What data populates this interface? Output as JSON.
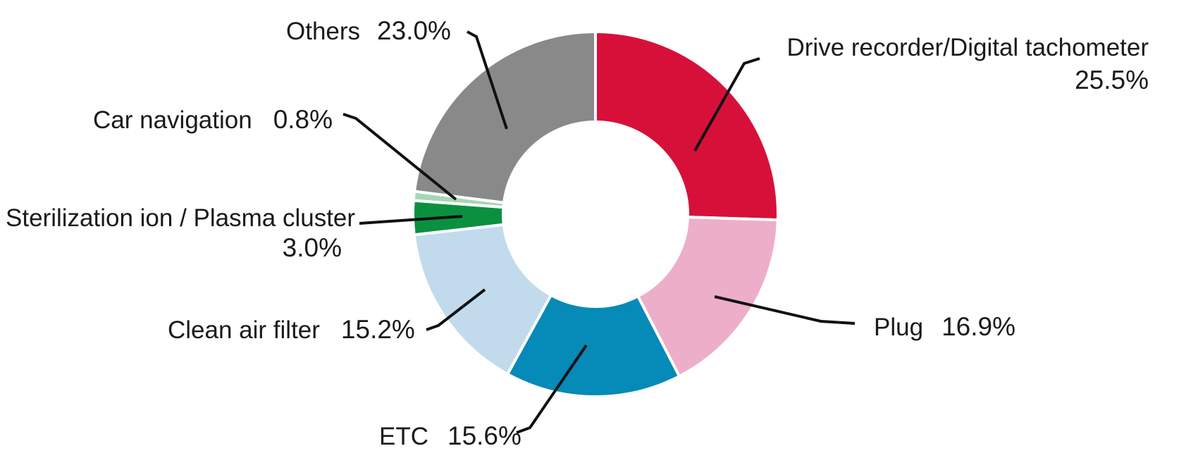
{
  "chart_data": {
    "type": "pie",
    "subtype": "donut",
    "title": "",
    "direction": "clockwise",
    "start_angle_deg": 0,
    "inner_radius_ratio": 0.506,
    "background": "#ffffff",
    "leader_line_color": "#111111",
    "text_color": "#1a1a1a",
    "segments": [
      {
        "id": "drive",
        "label": "Drive recorder/Digital tachometer",
        "value": 25.5,
        "pct_label": "25.5%",
        "color": "#d7103a"
      },
      {
        "id": "plug",
        "label": "Plug",
        "value": 16.9,
        "pct_label": "16.9%",
        "color": "#edaec9"
      },
      {
        "id": "etc",
        "label": "ETC",
        "value": 15.6,
        "pct_label": "15.6%",
        "color": "#068ab8"
      },
      {
        "id": "clean",
        "label": "Clean air filter",
        "value": 15.2,
        "pct_label": "15.2%",
        "color": "#c1dbed"
      },
      {
        "id": "steril",
        "label": "Sterilization ion / Plasma cluster",
        "value": 3.0,
        "pct_label": "3.0%",
        "color": "#0b9040"
      },
      {
        "id": "carnav",
        "label": "Car navigation",
        "value": 0.8,
        "pct_label": "0.8%",
        "color": "#a6d7b5"
      },
      {
        "id": "others",
        "label": "Others",
        "value": 23.0,
        "pct_label": "23.0%",
        "color": "#898989"
      }
    ]
  }
}
